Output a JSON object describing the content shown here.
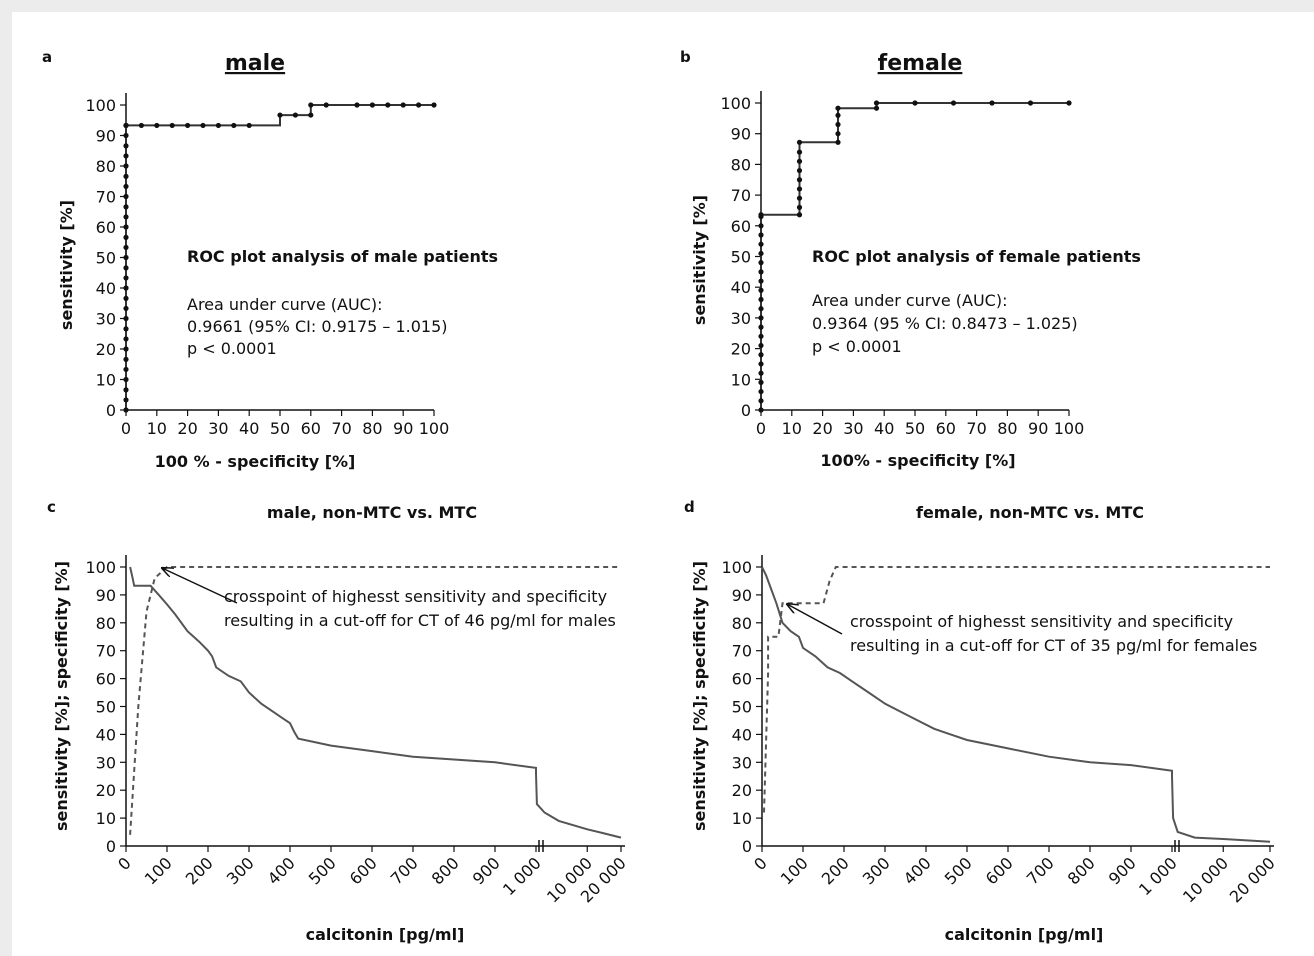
{
  "chart_data": [
    {
      "panel": "a",
      "type": "line",
      "title": "male",
      "xlabel": "100 % - specificity [%]",
      "ylabel": "sensitivity [%]",
      "xlim": [
        0,
        100
      ],
      "ylim": [
        0,
        100
      ],
      "xticks": [
        "0",
        "10",
        "20",
        "30",
        "40",
        "50",
        "60",
        "70",
        "80",
        "90",
        "100"
      ],
      "yticks": [
        "0",
        "10",
        "20",
        "30",
        "40",
        "50",
        "60",
        "70",
        "80",
        "90",
        "100"
      ],
      "x": [
        0,
        0,
        0,
        0,
        0,
        0,
        0,
        0,
        0,
        0,
        0,
        0,
        0,
        0,
        0,
        0,
        0,
        0,
        0,
        0,
        0,
        0,
        0,
        0,
        0,
        0,
        0,
        0,
        0,
        0,
        0,
        5,
        10,
        15,
        20,
        25,
        30,
        35,
        40,
        50,
        55,
        60,
        60,
        65,
        75,
        80,
        85,
        90,
        95,
        100
      ],
      "y": [
        0,
        3.3,
        6.6,
        10,
        13.3,
        16.6,
        20,
        23.3,
        26.6,
        30,
        33.3,
        36.6,
        40,
        43.3,
        46.6,
        50,
        53.3,
        56.6,
        60,
        63.3,
        66.6,
        70,
        73.3,
        76.6,
        80,
        83.3,
        86.6,
        90,
        93.3,
        93.3,
        93.3,
        93.3,
        93.3,
        93.3,
        93.3,
        93.3,
        93.3,
        93.3,
        93.3,
        96.7,
        96.7,
        96.7,
        100,
        100,
        100,
        100,
        100,
        100,
        100,
        100
      ],
      "annotation_title": "ROC plot analysis of male patients",
      "annotation_lines": [
        "Area under curve (AUC):",
        "0.9661 (95% CI: 0.9175 – 1.015)",
        "p < 0.0001"
      ]
    },
    {
      "panel": "b",
      "type": "line",
      "title": "female",
      "xlabel": "100% - specificity [%]",
      "ylabel": "sensitivity [%]",
      "xlim": [
        0,
        100
      ],
      "ylim": [
        0,
        100
      ],
      "xticks": [
        "0",
        "10",
        "20",
        "30",
        "40",
        "50",
        "60",
        "70",
        "80",
        "90",
        "100"
      ],
      "yticks": [
        "0",
        "10",
        "20",
        "30",
        "40",
        "50",
        "60",
        "70",
        "80",
        "90",
        "100"
      ],
      "x": [
        0,
        0,
        0,
        0,
        0,
        0,
        0,
        0,
        0,
        0,
        0,
        0,
        0,
        0,
        0,
        0,
        0,
        0,
        0,
        0,
        0,
        0,
        0,
        12.5,
        12.5,
        12.5,
        12.5,
        12.5,
        12.5,
        12.5,
        12.5,
        12.5,
        25,
        25,
        25,
        25,
        25,
        37.5,
        37.5,
        50,
        62.5,
        75,
        87.5,
        100
      ],
      "y": [
        0,
        3,
        6,
        9,
        12,
        15,
        18,
        21,
        24,
        27,
        30,
        33,
        36,
        39,
        42,
        45,
        48,
        51,
        54,
        57,
        60,
        63,
        63.6,
        63.6,
        66,
        69,
        72,
        75,
        78,
        81,
        84,
        87.2,
        87.2,
        90,
        93,
        96,
        98.3,
        98.3,
        100,
        100,
        100,
        100,
        100,
        100
      ],
      "annotation_title": "ROC plot analysis of female patients",
      "annotation_lines": [
        "Area under curve (AUC):",
        "0.9364 (95 % CI: 0.8473 – 1.025)",
        "p < 0.0001"
      ]
    },
    {
      "panel": "c",
      "type": "line",
      "title": "male, non-MTC vs. MTC",
      "xlabel": "calcitonin [pg/ml]",
      "ylabel": "sensitivity [%]; specificity [%]",
      "ylim": [
        0,
        100
      ],
      "xticks": [
        "0",
        "100",
        "200",
        "300",
        "400",
        "500",
        "600",
        "700",
        "800",
        "900",
        "1 000",
        "10 000",
        "20 000"
      ],
      "yticks": [
        "0",
        "10",
        "20",
        "30",
        "40",
        "50",
        "60",
        "70",
        "80",
        "90",
        "100"
      ],
      "series": [
        {
          "style": "solid",
          "x": [
            10,
            15,
            20,
            40,
            60,
            80,
            100,
            120,
            150,
            180,
            200,
            210,
            220,
            250,
            280,
            300,
            330,
            360,
            380,
            400,
            410,
            420,
            500,
            600,
            700,
            800,
            900,
            1000,
            1000,
            1150,
            2500,
            5000,
            10000,
            15000,
            20000
          ],
          "y": [
            100,
            96.7,
            93.3,
            93.3,
            93.3,
            90,
            86.6,
            83,
            77,
            73,
            70,
            68,
            64,
            61,
            59,
            55,
            51,
            48,
            46,
            44,
            41,
            38.5,
            36,
            34,
            32,
            31,
            30,
            28,
            26,
            15,
            12,
            9,
            6,
            4.5,
            3
          ]
        },
        {
          "style": "dashed",
          "x": [
            10,
            30,
            50,
            70,
            100,
            200,
            300,
            400,
            500,
            600,
            700,
            800,
            900,
            1000,
            10000,
            20000
          ],
          "y": [
            4,
            50,
            84,
            96,
            100,
            100,
            100,
            100,
            100,
            100,
            100,
            100,
            100,
            100,
            100,
            100
          ]
        }
      ],
      "annotation_lines": [
        "crosspoint of highesst sensitivity and specificity",
        "resulting in a cut-off for CT of 46 pg/ml for males"
      ]
    },
    {
      "panel": "d",
      "type": "line",
      "title": "female, non-MTC vs. MTC",
      "xlabel": "calcitonin [pg/ml]",
      "ylabel": "sensitivity [%]; specificity [%]",
      "ylim": [
        0,
        100
      ],
      "xticks": [
        "0",
        "100",
        "200",
        "300",
        "400",
        "500",
        "600",
        "700",
        "800",
        "900",
        "1 000",
        "10 000",
        "20 000"
      ],
      "yticks": [
        "0",
        "10",
        "20",
        "30",
        "40",
        "50",
        "60",
        "70",
        "80",
        "90",
        "100"
      ],
      "series": [
        {
          "style": "solid",
          "x": [
            0,
            10,
            20,
            35,
            50,
            70,
            90,
            100,
            130,
            160,
            190,
            220,
            260,
            300,
            340,
            380,
            420,
            460,
            500,
            600,
            700,
            800,
            900,
            1000,
            1000,
            1200,
            2000,
            5000,
            10000,
            20000
          ],
          "y": [
            100,
            97,
            93,
            87,
            80,
            77,
            75,
            71,
            68,
            64,
            62,
            59,
            55,
            51,
            48,
            45,
            42,
            40,
            38,
            35,
            32,
            30,
            29,
            27,
            25,
            10,
            5,
            3,
            2.5,
            1.5
          ],
          "x_raw": null
        },
        {
          "style": "dashed",
          "x": [
            5,
            15,
            15,
            30,
            40,
            50,
            75,
            150,
            165,
            180,
            200,
            300,
            500,
            1000,
            10000,
            20000
          ],
          "y": [
            12,
            62,
            75,
            75,
            75,
            87,
            87,
            87,
            95,
            100,
            100,
            100,
            100,
            100,
            100,
            100
          ]
        }
      ],
      "annotation_lines": [
        "crosspoint of highesst sensitivity and specificity",
        "resulting in a cut-off for CT of 35 pg/ml for females"
      ]
    }
  ]
}
